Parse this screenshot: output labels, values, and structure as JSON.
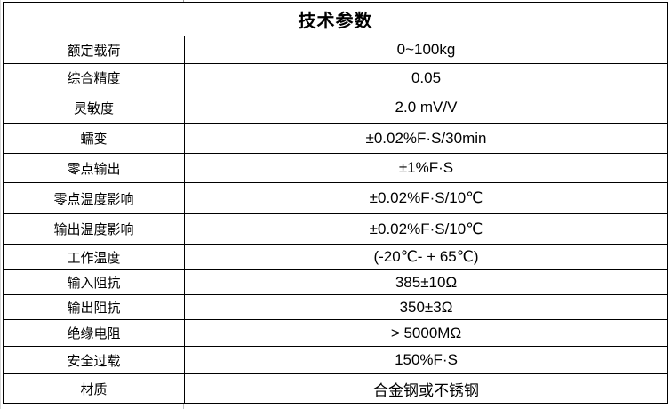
{
  "colors": {
    "border": "#000000",
    "text": "#000000",
    "background": "#ffffff"
  },
  "table": {
    "title": "技术参数",
    "rows": [
      {
        "label": "额定载荷",
        "value": "0~100kg"
      },
      {
        "label": "综合精度",
        "value": "0.05"
      },
      {
        "label": "灵敏度",
        "value": "2.0 mV/V"
      },
      {
        "label": "蠕变",
        "value": "±0.02%F·S/30min"
      },
      {
        "label": "零点输出",
        "value": "±1%F·S"
      },
      {
        "label": "零点温度影响",
        "value": "±0.02%F·S/10℃"
      },
      {
        "label": "输出温度影响",
        "value": "±0.02%F·S/10℃"
      },
      {
        "label": "工作温度",
        "value": "(-20℃- + 65℃)"
      },
      {
        "label": "输入阻抗",
        "value": "385±10Ω"
      },
      {
        "label": "输出阻抗",
        "value": "350±3Ω"
      },
      {
        "label": "绝缘电阻",
        "value": "> 5000MΩ"
      },
      {
        "label": "安全过载",
        "value": "150%F·S"
      },
      {
        "label": "材质",
        "value": "合金钢或不锈钢"
      }
    ]
  }
}
